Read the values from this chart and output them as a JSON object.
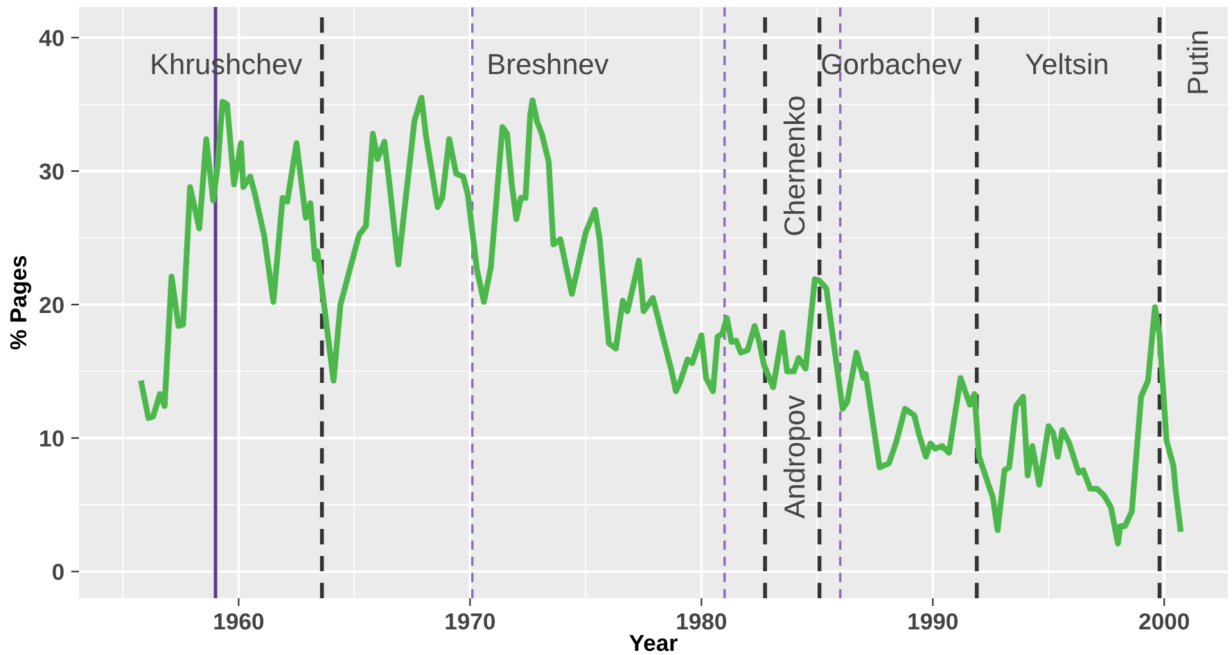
{
  "chart_data": {
    "type": "line",
    "xlabel": "Year",
    "ylabel": "% Pages",
    "xlim": [
      1953.1,
      2002.75
    ],
    "ylim": [
      -2.0,
      42.3
    ],
    "xticks": [
      1960,
      1970,
      1980,
      1990,
      2000
    ],
    "yticks": [
      0,
      10,
      20,
      30,
      40
    ],
    "grid": true,
    "line_style": "solid",
    "series": [
      {
        "color": "#4cb84c",
        "x": [
          1955.8,
          1956.1,
          1956.3,
          1956.6,
          1956.8,
          1957.1,
          1957.4,
          1957.6,
          1957.9,
          1958.3,
          1958.6,
          1958.9,
          1959.1,
          1959.3,
          1959.5,
          1959.8,
          1960.1,
          1960.2,
          1960.5,
          1960.7,
          1961.1,
          1961.5,
          1961.9,
          1962.1,
          1962.5,
          1962.9,
          1963.1,
          1963.3,
          1963.4,
          1964.1,
          1964.4,
          1965.2,
          1965.5,
          1965.8,
          1966.0,
          1966.3,
          1966.5,
          1966.9,
          1967.6,
          1967.9,
          1968.1,
          1968.6,
          1968.8,
          1969.1,
          1969.4,
          1969.7,
          1969.9,
          1970.3,
          1970.6,
          1970.9,
          1971.4,
          1971.6,
          1971.8,
          1972.0,
          1972.2,
          1972.4,
          1972.6,
          1972.7,
          1972.9,
          1973.1,
          1973.4,
          1973.6,
          1973.9,
          1974.4,
          1975.0,
          1975.4,
          1975.6,
          1976.0,
          1976.3,
          1976.6,
          1976.8,
          1977.3,
          1977.5,
          1977.9,
          1978.7,
          1978.9,
          1979.1,
          1979.4,
          1979.6,
          1980.0,
          1980.2,
          1980.5,
          1980.7,
          1980.9,
          1981.1,
          1981.3,
          1981.5,
          1981.7,
          1982.0,
          1982.3,
          1982.5,
          1982.7,
          1983.1,
          1983.5,
          1983.7,
          1984.0,
          1984.2,
          1984.5,
          1984.9,
          1985.1,
          1985.4,
          1986.1,
          1986.3,
          1986.7,
          1987.0,
          1987.1,
          1987.7,
          1988.1,
          1988.4,
          1988.8,
          1989.2,
          1989.4,
          1989.7,
          1989.9,
          1990.1,
          1990.4,
          1990.7,
          1991.2,
          1991.6,
          1991.8,
          1992.0,
          1992.6,
          1992.8,
          1993.1,
          1993.3,
          1993.6,
          1993.9,
          1994.1,
          1994.3,
          1994.6,
          1995.0,
          1995.2,
          1995.4,
          1995.6,
          1995.9,
          1996.3,
          1996.5,
          1996.8,
          1997.1,
          1997.4,
          1997.7,
          1998.0,
          1998.1,
          1998.3,
          1998.6,
          1999.0,
          1999.3,
          1999.6,
          1999.8,
          2000.1,
          2000.4,
          2000.5,
          2000.7
        ],
        "values": [
          14.1,
          11.5,
          11.6,
          13.3,
          12.4,
          22.1,
          18.4,
          18.5,
          28.8,
          25.7,
          32.4,
          27.8,
          30.5,
          35.2,
          35.0,
          29.0,
          32.1,
          28.8,
          29.6,
          28.3,
          25.2,
          20.2,
          28.0,
          27.7,
          32.1,
          26.5,
          27.6,
          23.4,
          24.0,
          14.3,
          20.0,
          25.2,
          25.9,
          32.8,
          30.9,
          32.2,
          29.3,
          23.0,
          33.8,
          35.5,
          32.6,
          27.3,
          28.0,
          32.4,
          29.8,
          29.6,
          28.3,
          22.6,
          20.2,
          22.8,
          33.3,
          32.8,
          29.1,
          26.4,
          28.0,
          28.0,
          34.2,
          35.3,
          33.7,
          32.8,
          30.7,
          24.5,
          24.9,
          20.8,
          25.4,
          27.1,
          24.9,
          17.1,
          16.7,
          20.3,
          19.5,
          23.3,
          19.5,
          20.5,
          15.1,
          13.5,
          14.3,
          15.9,
          15.6,
          17.7,
          14.5,
          13.5,
          17.6,
          17.8,
          19.0,
          17.2,
          17.3,
          16.4,
          16.6,
          18.4,
          17.2,
          15.5,
          13.8,
          17.9,
          15.0,
          15.0,
          16.0,
          15.2,
          21.9,
          21.8,
          21.2,
          12.2,
          12.7,
          16.4,
          14.5,
          14.8,
          7.8,
          8.1,
          9.6,
          12.2,
          11.7,
          10.3,
          8.6,
          9.6,
          9.2,
          9.4,
          8.9,
          14.5,
          12.5,
          13.3,
          8.6,
          5.5,
          3.1,
          7.6,
          7.8,
          12.4,
          13.1,
          7.2,
          9.4,
          6.5,
          10.9,
          10.4,
          8.6,
          10.6,
          9.6,
          7.4,
          7.6,
          6.2,
          6.2,
          5.7,
          4.8,
          2.1,
          3.4,
          3.4,
          4.5,
          13.1,
          14.3,
          19.8,
          17.7,
          9.8,
          7.9,
          6.0,
          3.2
        ]
      }
    ],
    "ref_lines": [
      {
        "axis": "x",
        "value": 1959.0,
        "color": "#5b3c8c",
        "line_style": "solid"
      },
      {
        "axis": "x",
        "value": 1963.6,
        "color": "#333333",
        "line_style": "dashed"
      },
      {
        "axis": "x",
        "value": 1970.1,
        "color": "#8a68c4",
        "line_style": "dashed"
      },
      {
        "axis": "x",
        "value": 1981.0,
        "color": "#8a68c4",
        "line_style": "dashed"
      },
      {
        "axis": "x",
        "value": 1982.75,
        "color": "#333333",
        "line_style": "dashed"
      },
      {
        "axis": "x",
        "value": 1985.1,
        "color": "#333333",
        "line_style": "dashed"
      },
      {
        "axis": "x",
        "value": 1986.0,
        "color": "#8a68c4",
        "line_style": "dashed"
      },
      {
        "axis": "x",
        "value": 1991.9,
        "color": "#333333",
        "line_style": "dashed"
      },
      {
        "axis": "x",
        "value": 1999.8,
        "color": "#333333",
        "line_style": "dashed"
      }
    ],
    "annotations": [
      "Khrushchev",
      "Breshnev",
      "Chernenko",
      "Andropov",
      "Gorbachev",
      "Yeltsin",
      "Putin"
    ]
  }
}
